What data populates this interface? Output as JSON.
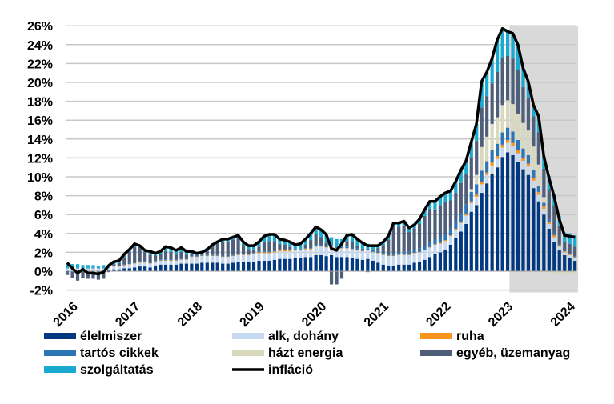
{
  "chart_data": {
    "type": "bar",
    "stacked": true,
    "title": "",
    "xlabel": "",
    "ylabel": "",
    "ylim": [
      -2,
      26
    ],
    "y_ticks": [
      "-2%",
      "0%",
      "2%",
      "4%",
      "6%",
      "8%",
      "10%",
      "12%",
      "14%",
      "16%",
      "18%",
      "20%",
      "22%",
      "24%",
      "26%"
    ],
    "y_tick_values": [
      -2,
      0,
      2,
      4,
      6,
      8,
      10,
      12,
      14,
      16,
      18,
      20,
      22,
      24,
      26
    ],
    "x_tick_labels": [
      "2016",
      "2017",
      "2018",
      "2019",
      "2020",
      "2021",
      "2022",
      "2023",
      "2024"
    ],
    "grid": true,
    "legend_position": "bottom",
    "shaded_region": {
      "from": "2023-03",
      "to": "2024-03",
      "color": "#d9d9d9"
    },
    "x": [
      "2016-01",
      "2016-02",
      "2016-03",
      "2016-04",
      "2016-05",
      "2016-06",
      "2016-07",
      "2016-08",
      "2016-09",
      "2016-10",
      "2016-11",
      "2016-12",
      "2017-01",
      "2017-02",
      "2017-03",
      "2017-04",
      "2017-05",
      "2017-06",
      "2017-07",
      "2017-08",
      "2017-09",
      "2017-10",
      "2017-11",
      "2017-12",
      "2018-01",
      "2018-02",
      "2018-03",
      "2018-04",
      "2018-05",
      "2018-06",
      "2018-07",
      "2018-08",
      "2018-09",
      "2018-10",
      "2018-11",
      "2018-12",
      "2019-01",
      "2019-02",
      "2019-03",
      "2019-04",
      "2019-05",
      "2019-06",
      "2019-07",
      "2019-08",
      "2019-09",
      "2019-10",
      "2019-11",
      "2019-12",
      "2020-01",
      "2020-02",
      "2020-03",
      "2020-04",
      "2020-05",
      "2020-06",
      "2020-07",
      "2020-08",
      "2020-09",
      "2020-10",
      "2020-11",
      "2020-12",
      "2021-01",
      "2021-02",
      "2021-03",
      "2021-04",
      "2021-05",
      "2021-06",
      "2021-07",
      "2021-08",
      "2021-09",
      "2021-10",
      "2021-11",
      "2021-12",
      "2022-01",
      "2022-02",
      "2022-03",
      "2022-04",
      "2022-05",
      "2022-06",
      "2022-07",
      "2022-08",
      "2022-09",
      "2022-10",
      "2022-11",
      "2022-12",
      "2023-01",
      "2023-02",
      "2023-03",
      "2023-04",
      "2023-05",
      "2023-06",
      "2023-07",
      "2023-08",
      "2023-09",
      "2023-10",
      "2023-11",
      "2023-12",
      "2024-01",
      "2024-02",
      "2024-03"
    ],
    "series": [
      {
        "name": "élelmiszer",
        "color": "#003882",
        "values": [
          -0.1,
          0,
          0,
          0,
          0,
          0,
          0,
          0,
          0.1,
          0.2,
          0.2,
          0.3,
          0.3,
          0.4,
          0.5,
          0.5,
          0.4,
          0.6,
          0.7,
          0.7,
          0.7,
          0.7,
          0.8,
          0.8,
          0.8,
          0.8,
          0.9,
          0.9,
          0.9,
          0.9,
          0.8,
          0.8,
          0.9,
          1.0,
          1.0,
          1.0,
          1.0,
          1.1,
          1.1,
          1.1,
          1.2,
          1.3,
          1.3,
          1.3,
          1.4,
          1.4,
          1.5,
          1.5,
          1.7,
          1.7,
          1.6,
          1.7,
          1.5,
          1.5,
          1.5,
          1.4,
          1.3,
          1.2,
          1.3,
          1.1,
          0.9,
          0.7,
          0.6,
          0.6,
          0.7,
          0.7,
          0.7,
          0.9,
          1.0,
          1.2,
          1.5,
          1.8,
          2.0,
          2.3,
          2.8,
          3.5,
          4.2,
          5.0,
          6.3,
          7.0,
          8.3,
          9.3,
          10.3,
          11.0,
          12.1,
          12.6,
          12.3,
          11.6,
          10.8,
          10.2,
          8.8,
          7.4,
          6.0,
          4.5,
          3.1,
          2.2,
          1.7,
          1.4,
          1.1
        ]
      },
      {
        "name": "alk, dohány",
        "color": "#c5d9f1",
        "values": [
          0.3,
          0.3,
          0.3,
          0.3,
          0.3,
          0.3,
          0.3,
          0.3,
          0.3,
          0.3,
          0.3,
          0.3,
          0.4,
          0.4,
          0.4,
          0.4,
          0.4,
          0.4,
          0.4,
          0.4,
          0.4,
          0.4,
          0.4,
          0.4,
          0.7,
          0.7,
          0.7,
          0.7,
          0.7,
          0.7,
          0.7,
          0.7,
          0.7,
          0.7,
          0.7,
          0.7,
          0.8,
          0.8,
          0.8,
          0.8,
          0.8,
          0.8,
          0.8,
          0.8,
          0.8,
          0.8,
          0.8,
          0.8,
          0.9,
          0.9,
          0.9,
          0.9,
          0.9,
          0.9,
          0.9,
          0.9,
          0.9,
          0.9,
          0.9,
          0.9,
          1.0,
          1.0,
          1.0,
          1.0,
          1.0,
          1.0,
          1.0,
          1.0,
          1.0,
          1.0,
          1.0,
          1.0,
          0.9,
          0.9,
          0.9,
          0.9,
          0.9,
          0.9,
          0.9,
          0.9,
          0.9,
          0.9,
          0.9,
          0.9,
          1.0,
          1.0,
          1.0,
          0.9,
          0.9,
          0.9,
          0.8,
          0.7,
          0.6,
          0.5,
          0.5,
          0.4,
          0.3,
          0.3,
          0.3
        ]
      },
      {
        "name": "ruha",
        "color": "#f7941d",
        "values": [
          0,
          0,
          0,
          0,
          0,
          0,
          0,
          0,
          0,
          0,
          0,
          0.05,
          0.05,
          0.05,
          0.05,
          0.05,
          0.05,
          0.05,
          0.05,
          0.05,
          0.05,
          0.05,
          0.05,
          0.05,
          0.05,
          0.05,
          0.05,
          0.05,
          0.05,
          0.05,
          0.05,
          0.05,
          0.05,
          0.05,
          0.05,
          0.05,
          0.1,
          0.1,
          0.1,
          0.1,
          0.1,
          0.1,
          0.1,
          0.1,
          0.1,
          0.1,
          0.1,
          0.1,
          0.05,
          0.05,
          0.05,
          0.05,
          0.05,
          0.05,
          0.05,
          0.05,
          0.05,
          0.05,
          0.05,
          0.05,
          0.05,
          0.05,
          0.05,
          0.05,
          0.05,
          0.05,
          0.05,
          0.05,
          0.05,
          0.05,
          0.05,
          0.05,
          0.1,
          0.1,
          0.1,
          0.1,
          0.15,
          0.15,
          0.2,
          0.2,
          0.25,
          0.25,
          0.3,
          0.3,
          0.3,
          0.3,
          0.3,
          0.3,
          0.3,
          0.3,
          0.3,
          0.3,
          0.25,
          0.2,
          0.2,
          0.15,
          0.1,
          0.1,
          0.1
        ]
      },
      {
        "name": "tartós cikkek",
        "color": "#2e75b6",
        "values": [
          0.05,
          0.05,
          0.05,
          0.05,
          0.05,
          0.05,
          0.05,
          0.05,
          0.05,
          0.05,
          0.05,
          0.05,
          0.1,
          0.1,
          0.1,
          0.1,
          0.1,
          0.1,
          0.1,
          0.1,
          0.1,
          0.1,
          0.1,
          0.1,
          0.1,
          0.1,
          0.1,
          0.1,
          0.1,
          0.1,
          0.1,
          0.1,
          0.1,
          0.1,
          0.1,
          0.1,
          0.1,
          0.1,
          0.1,
          0.1,
          0.1,
          0.1,
          0.1,
          0.1,
          0.1,
          0.1,
          0.1,
          0.1,
          0.15,
          0.15,
          0.15,
          0.15,
          0.15,
          0.15,
          0.15,
          0.15,
          0.15,
          0.15,
          0.15,
          0.15,
          0.2,
          0.2,
          0.2,
          0.25,
          0.25,
          0.3,
          0.3,
          0.3,
          0.35,
          0.4,
          0.45,
          0.5,
          0.5,
          0.6,
          0.7,
          0.8,
          0.9,
          1.0,
          1.0,
          1.1,
          1.2,
          1.2,
          1.3,
          1.3,
          1.3,
          1.3,
          1.2,
          1.1,
          1.0,
          0.9,
          0.8,
          0.6,
          0.4,
          0.3,
          0.2,
          0.1,
          0.1,
          0.1,
          0.1
        ]
      },
      {
        "name": "házt energia",
        "color": "#d8d8bd",
        "values": [
          0,
          0,
          0,
          0,
          0,
          0,
          0,
          0,
          0,
          0,
          0,
          0,
          0,
          0,
          0,
          0,
          0,
          0,
          0,
          0,
          0,
          0,
          0,
          0,
          0,
          0,
          0,
          0,
          0,
          0,
          0,
          0,
          0,
          0,
          0,
          0,
          0,
          0,
          0,
          0,
          0,
          0,
          0,
          0,
          0,
          0,
          0,
          0,
          0,
          0,
          0,
          0,
          0,
          0,
          0,
          0,
          0,
          0,
          0,
          0,
          0,
          0,
          0,
          0,
          0,
          0,
          0,
          0,
          0,
          0,
          0,
          0,
          0,
          0,
          0,
          0,
          0,
          0,
          0.3,
          1.0,
          2.5,
          2.6,
          2.8,
          2.8,
          2.9,
          2.9,
          2.9,
          2.8,
          2.7,
          2.6,
          2.5,
          2.3,
          0.6,
          -0.2,
          -0.3,
          -0.3,
          -0.3,
          -0.3,
          -0.2
        ]
      },
      {
        "name": "egyéb, üzemanyag",
        "color": "#4f5f7a",
        "values": [
          -0.3,
          -0.7,
          -1.0,
          -0.7,
          -0.8,
          -0.8,
          -0.9,
          -0.8,
          -0.1,
          0.2,
          0.3,
          0.8,
          1.2,
          1.6,
          1.5,
          1.0,
          0.8,
          0.5,
          0.6,
          0.9,
          0.8,
          0.6,
          0.7,
          0.4,
          0.2,
          0.1,
          0.1,
          0.4,
          0.9,
          1.2,
          1.5,
          1.5,
          1.6,
          1.7,
          0.9,
          0.5,
          0.3,
          0.5,
          1.0,
          1.1,
          1.0,
          0.6,
          0.5,
          0.3,
          0,
          0,
          0.3,
          0.8,
          1.1,
          0.8,
          0.3,
          -1.4,
          -1.4,
          -0.8,
          0.6,
          0.7,
          0.3,
          0.1,
          -0.1,
          0.1,
          0.3,
          0.8,
          1.5,
          2.8,
          2.7,
          2.8,
          2.1,
          2.3,
          2.6,
          3.2,
          3.6,
          3.2,
          3.5,
          3.4,
          3.0,
          3.0,
          3.2,
          3.2,
          3.4,
          3.6,
          4.2,
          4.3,
          4.3,
          4.8,
          5.0,
          4.7,
          4.8,
          4.6,
          3.8,
          3.5,
          3.2,
          3.4,
          3.0,
          3.2,
          3.0,
          2.0,
          0.9,
          1.0,
          1.0
        ]
      },
      {
        "name": "szolgáltatás",
        "color": "#1aa9cf",
        "values": [
          0.4,
          0.4,
          0.4,
          0.3,
          0.3,
          0.3,
          0.2,
          0.3,
          0.2,
          0.2,
          0.2,
          0.2,
          0.3,
          0.3,
          0.2,
          0.2,
          0.3,
          0.3,
          0.3,
          0.4,
          0.4,
          0.4,
          0.4,
          0.3,
          0.3,
          0.3,
          0.3,
          0.3,
          0.3,
          0.3,
          0.3,
          0.3,
          0.3,
          0.3,
          0.3,
          0.3,
          0.5,
          0.6,
          0.7,
          0.8,
          0.8,
          0.6,
          0.6,
          0.6,
          0.5,
          0.6,
          0.7,
          0.8,
          0.9,
          0.8,
          0.9,
          0.8,
          0.8,
          0.8,
          0.7,
          0.7,
          0.7,
          0.6,
          0.5,
          0.5,
          0.3,
          0.4,
          0.4,
          0.5,
          0.5,
          0.5,
          0.5,
          0.5,
          0.6,
          0.7,
          0.8,
          0.9,
          0.9,
          1.0,
          1.0,
          1.2,
          1.35,
          1.45,
          1.6,
          1.8,
          2.75,
          2.55,
          2.6,
          3.4,
          3.1,
          2.6,
          2.7,
          2.7,
          2.0,
          1.7,
          1.2,
          1.7,
          1.35,
          1.4,
          1.2,
          1.0,
          1.0,
          1.1,
          1.2
        ]
      }
    ],
    "line": {
      "name": "infláció",
      "color": "#000000",
      "values": [
        0.9,
        0.3,
        -0.2,
        0.2,
        -0.2,
        -0.2,
        -0.3,
        -0.1,
        0.6,
        1.0,
        1.1,
        1.8,
        2.3,
        2.9,
        2.7,
        2.2,
        2.1,
        1.9,
        2.1,
        2.6,
        2.5,
        2.2,
        2.5,
        2.1,
        2.1,
        1.9,
        2.0,
        2.3,
        2.8,
        3.1,
        3.4,
        3.4,
        3.6,
        3.8,
        3.1,
        2.7,
        2.7,
        3.1,
        3.7,
        3.9,
        3.9,
        3.4,
        3.3,
        3.1,
        2.8,
        2.9,
        3.4,
        4.0,
        4.7,
        4.4,
        3.9,
        2.4,
        2.2,
        2.9,
        3.8,
        3.9,
        3.4,
        3.0,
        2.7,
        2.7,
        2.7,
        3.1,
        3.7,
        5.1,
        5.1,
        5.3,
        4.6,
        4.9,
        5.5,
        6.5,
        7.4,
        7.4,
        7.9,
        8.3,
        8.5,
        9.5,
        10.7,
        11.7,
        13.7,
        15.6,
        20.1,
        21.1,
        22.5,
        24.5,
        25.7,
        25.4,
        25.2,
        24.0,
        21.5,
        20.1,
        17.6,
        16.4,
        12.2,
        9.9,
        7.9,
        5.5,
        3.8,
        3.7,
        3.6
      ]
    }
  }
}
